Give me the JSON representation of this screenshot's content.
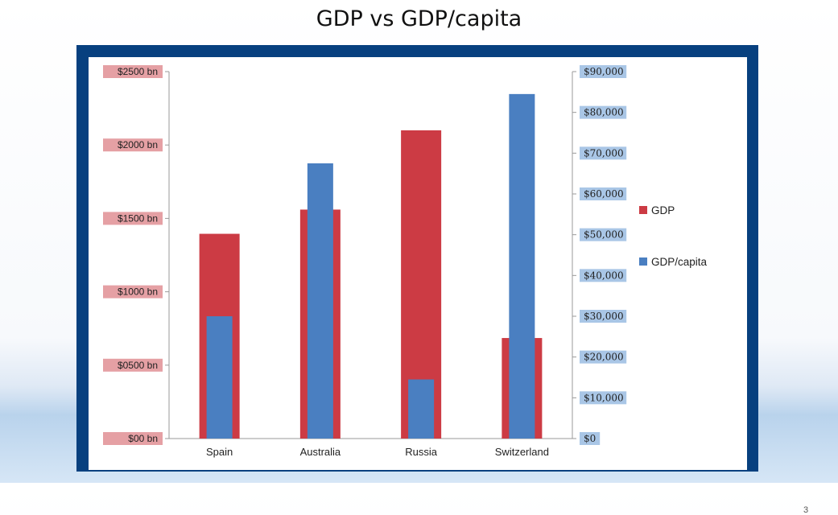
{
  "slide": {
    "title": "GDP vs GDP/capita",
    "page_number": "3"
  },
  "colors": {
    "gdp": "#cc3b44",
    "gdp_per_capita": "#4a7fc1",
    "left_label_bg": "#e5a0a4",
    "right_label_bg": "#a9c6e6",
    "frame": "#07407f"
  },
  "chart_data": {
    "type": "bar",
    "title": "",
    "categories": [
      "Spain",
      "Australia",
      "Russia",
      "Switzerland"
    ],
    "series": [
      {
        "name": "GDP",
        "axis": "left",
        "values": [
          1395,
          1560,
          2100,
          685
        ]
      },
      {
        "name": "GDP/capita",
        "axis": "right",
        "values": [
          30000,
          67500,
          14500,
          84500
        ]
      }
    ],
    "y_left": {
      "ylim": [
        0,
        2500
      ],
      "ticks": [
        0,
        500,
        1000,
        1500,
        2000,
        2500
      ],
      "tick_labels": [
        "$00 bn",
        "$0500 bn",
        "$1000 bn",
        "$1500 bn",
        "$2000 bn",
        "$2500 bn"
      ]
    },
    "y_right": {
      "ylim": [
        0,
        90000
      ],
      "ticks": [
        0,
        10000,
        20000,
        30000,
        40000,
        50000,
        60000,
        70000,
        80000,
        90000
      ],
      "tick_labels": [
        "$0",
        "$10,000",
        "$20,000",
        "$30,000",
        "$40,000",
        "$50,000",
        "$60,000",
        "$70,000",
        "$80,000",
        "$90,000"
      ]
    },
    "legend": {
      "placement": "right",
      "entries": [
        "GDP",
        "GDP/capita"
      ]
    },
    "grid": false
  }
}
